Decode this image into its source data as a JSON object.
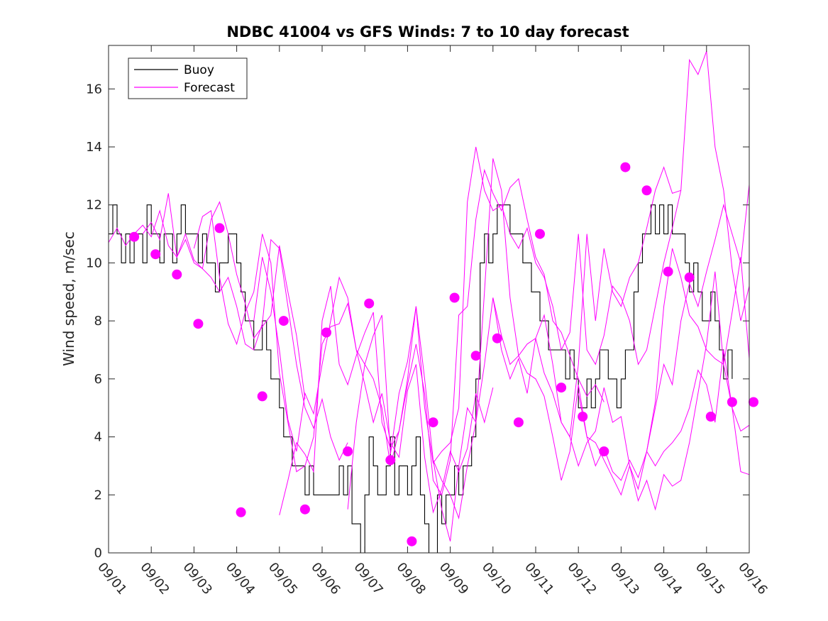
{
  "chart_data": {
    "type": "line",
    "title": "NDBC 41004 vs GFS Winds: 7 to 10 day forecast",
    "xlabel": "",
    "ylabel": "Wind speed, m/sec",
    "xlim": [
      0,
      15
    ],
    "ylim": [
      0,
      17.5
    ],
    "yticks": [
      0,
      2,
      4,
      6,
      8,
      10,
      12,
      14,
      16
    ],
    "xtick_labels": [
      "09/01",
      "09/02",
      "09/03",
      "09/04",
      "09/05",
      "09/06",
      "09/07",
      "09/08",
      "09/09",
      "09/10",
      "09/11",
      "09/12",
      "09/13",
      "09/14",
      "09/15",
      "09/16"
    ],
    "legend": {
      "position": "top-left",
      "entries": [
        {
          "name": "Buoy",
          "color": "#000000"
        },
        {
          "name": "Forecast",
          "color": "#ff00ff"
        }
      ]
    },
    "colors": {
      "buoy": "#000000",
      "forecast": "#ff00ff"
    },
    "series": [
      {
        "name": "Buoy",
        "color": "#000000",
        "x": [
          0,
          0.1,
          0.2,
          0.3,
          0.4,
          0.5,
          0.6,
          0.7,
          0.8,
          0.9,
          1.0,
          1.1,
          1.2,
          1.3,
          1.4,
          1.5,
          1.6,
          1.7,
          1.8,
          1.9,
          2.0,
          2.1,
          2.2,
          2.3,
          2.4,
          2.5,
          2.6,
          2.7,
          2.8,
          2.9,
          3.0,
          3.1,
          3.2,
          3.3,
          3.4,
          3.5,
          3.6,
          3.7,
          3.8,
          3.9,
          4.0,
          4.1,
          4.2,
          4.3,
          4.4,
          4.5,
          4.6,
          4.7,
          4.8,
          4.9,
          5.0,
          5.1,
          5.2,
          5.3,
          5.4,
          5.5,
          5.6,
          5.7,
          5.8,
          5.9,
          6.0,
          6.1,
          6.2,
          6.3,
          6.4,
          6.5,
          6.6,
          6.7,
          6.8,
          6.9,
          7.0,
          7.1,
          7.2,
          7.3,
          7.4,
          7.5,
          7.6,
          7.7,
          7.8,
          7.9,
          8.0,
          8.1,
          8.2,
          8.3,
          8.4,
          8.5,
          8.6,
          8.7,
          8.8,
          8.9,
          9.0,
          9.1,
          9.2,
          9.3,
          9.4,
          9.5,
          9.6,
          9.7,
          9.8,
          9.9,
          10.0,
          10.1,
          10.2,
          10.3,
          10.4,
          10.5,
          10.6,
          10.7,
          10.8,
          10.9,
          11.0,
          11.1,
          11.2,
          11.3,
          11.4,
          11.5,
          11.6,
          11.7,
          11.8,
          11.9,
          12.0,
          12.1,
          12.2,
          12.3,
          12.4,
          12.5,
          12.6,
          12.7,
          12.8,
          12.9,
          13.0,
          13.1,
          13.2,
          13.3,
          13.4,
          13.5,
          13.6,
          13.7,
          13.8,
          13.9,
          14.0,
          14.1,
          14.2,
          14.3,
          14.4,
          14.5,
          14.6
        ],
        "y": [
          11,
          12,
          11,
          10,
          11,
          10,
          11,
          11,
          10,
          12,
          11,
          11,
          10,
          11,
          11,
          10,
          11,
          12,
          11,
          11,
          11,
          10,
          11,
          10,
          10,
          9,
          10,
          10,
          11,
          11,
          10,
          9,
          8,
          8,
          7,
          7,
          8,
          7,
          6,
          6,
          5,
          4,
          4,
          3,
          3,
          3,
          2,
          3,
          2,
          2,
          2,
          2,
          2,
          2,
          3,
          2,
          3,
          1,
          1,
          0,
          2,
          4,
          3,
          2,
          2,
          3,
          4,
          2,
          3,
          3,
          2,
          3,
          4,
          2,
          1,
          0,
          0,
          2,
          1,
          2,
          2,
          3,
          2,
          3,
          3,
          4,
          6,
          10,
          11,
          10,
          11,
          12,
          12,
          12,
          11,
          11,
          11,
          10,
          10,
          9,
          9,
          8,
          8,
          7,
          7,
          7,
          7,
          6,
          7,
          6,
          5,
          5,
          6,
          5,
          6,
          7,
          7,
          6,
          6,
          5,
          6,
          7,
          7,
          9,
          10,
          11,
          11,
          12,
          11,
          12,
          11,
          12,
          11,
          11,
          11,
          10,
          9,
          10,
          9,
          8,
          8,
          9,
          8,
          7,
          6,
          7,
          6
        ]
      },
      {
        "name": "Forecast 1",
        "color": "#ff00ff",
        "x": [
          0,
          0.2,
          0.4,
          0.6,
          0.8,
          1.0,
          1.2,
          1.4,
          1.6,
          1.8,
          2.0,
          2.2,
          2.4,
          2.6,
          2.8,
          3.0,
          3.2,
          3.4,
          3.6,
          3.8,
          4.0,
          4.2,
          4.4,
          4.6
        ],
        "y": [
          10.7,
          11.2,
          10.6,
          11.0,
          11.3,
          10.9,
          11.8,
          10.6,
          10.2,
          11.0,
          10.1,
          9.8,
          11.5,
          12.1,
          11.0,
          9.6,
          8.6,
          7.4,
          7.8,
          8.2,
          10.6,
          9.0,
          7.5,
          5.3
        ]
      },
      {
        "name": "Forecast 2",
        "color": "#ff00ff",
        "x": [
          0.8,
          1.0,
          1.2,
          1.4,
          1.6,
          1.8,
          2.0,
          2.2,
          2.4,
          2.6,
          2.8,
          3.0,
          3.2,
          3.4,
          3.6,
          3.8,
          4.0,
          4.2,
          4.4,
          4.6,
          4.8,
          5.0,
          5.2,
          5.4,
          5.6
        ],
        "y": [
          11.0,
          11.4,
          10.8,
          12.4,
          10.2,
          10.8,
          10.0,
          9.8,
          9.5,
          9.0,
          9.5,
          8.5,
          7.2,
          7.0,
          7.9,
          10.8,
          10.5,
          8.5,
          6.5,
          5.0,
          4.3,
          5.3,
          4.0,
          3.2,
          3.8
        ]
      },
      {
        "name": "Forecast 3",
        "color": "#ff00ff",
        "x": [
          2.0,
          2.2,
          2.4,
          2.6,
          2.8,
          3.0,
          3.2,
          3.4,
          3.6,
          3.8,
          4.0,
          4.2,
          4.4,
          4.6,
          4.8,
          5.0,
          5.2,
          5.4,
          5.6,
          5.8,
          6.0,
          6.2,
          6.4,
          6.6,
          6.8,
          7.0,
          7.2,
          7.4,
          7.6,
          7.8,
          8.0,
          8.2,
          8.4,
          8.6,
          8.8,
          9.0
        ],
        "y": [
          10.5,
          11.6,
          11.8,
          9.5,
          7.9,
          7.2,
          8.3,
          9.0,
          11.0,
          10.0,
          6.2,
          4.5,
          2.8,
          3.0,
          4.0,
          7.2,
          7.8,
          7.9,
          8.6,
          7.0,
          5.8,
          4.5,
          5.5,
          3.8,
          3.3,
          5.6,
          6.5,
          3.3,
          1.4,
          2.2,
          3.5,
          2.8,
          3.6,
          5.5,
          4.5,
          5.7
        ]
      },
      {
        "name": "Forecast 4",
        "color": "#ff00ff",
        "x": [
          3.4,
          3.6,
          3.8,
          4.0,
          4.2,
          4.4,
          4.6,
          4.8,
          5.0,
          5.2,
          5.4,
          5.6,
          5.8,
          6.0,
          6.2,
          6.4,
          6.6,
          6.8,
          7.0,
          7.2,
          7.4,
          7.6,
          7.8,
          8.0,
          8.2,
          8.4,
          8.6,
          8.8,
          9.0,
          9.2,
          9.4,
          9.6,
          9.8,
          10.0,
          10.2,
          10.4,
          10.6,
          10.8,
          11.0,
          11.2,
          11.4,
          11.6
        ],
        "y": [
          8.0,
          10.2,
          9.0,
          7.0,
          4.6,
          3.5,
          5.5,
          4.8,
          6.5,
          8.0,
          9.5,
          8.8,
          7.0,
          6.5,
          6.0,
          5.0,
          3.0,
          4.2,
          5.8,
          7.2,
          5.5,
          2.5,
          2.0,
          3.2,
          8.2,
          8.5,
          11.5,
          13.2,
          12.4,
          11.8,
          12.6,
          12.9,
          11.5,
          10.2,
          9.6,
          8.0,
          7.6,
          6.8,
          6.0,
          5.4,
          5.8,
          5.2
        ]
      },
      {
        "name": "Forecast 5",
        "color": "#ff00ff",
        "x": [
          4.0,
          4.2,
          4.4,
          4.6,
          4.8,
          5.0,
          5.2,
          5.4,
          5.6,
          5.8,
          6.0,
          6.2,
          6.4,
          6.6,
          6.8,
          7.0,
          7.2,
          7.4,
          7.6,
          7.8,
          8.0,
          8.2,
          8.4,
          8.6,
          8.8,
          9.0,
          9.2,
          9.4,
          9.6,
          9.8,
          10.0,
          10.2,
          10.4,
          10.6,
          10.8,
          11.0,
          11.2,
          11.4,
          11.6,
          11.8,
          12.0,
          12.2,
          12.4,
          12.6,
          12.8,
          13.0,
          13.2,
          13.4
        ],
        "y": [
          1.3,
          2.5,
          3.8,
          3.4,
          2.8,
          8.0,
          9.2,
          6.5,
          5.8,
          6.8,
          7.6,
          8.3,
          4.5,
          3.6,
          4.2,
          6.0,
          8.5,
          5.0,
          3.1,
          3.5,
          3.8,
          5.0,
          12.1,
          14.0,
          12.5,
          11.8,
          12.0,
          11.0,
          10.5,
          11.2,
          10.0,
          9.5,
          8.5,
          7.0,
          7.6,
          11.0,
          7.0,
          6.5,
          7.5,
          9.2,
          8.8,
          8.0,
          6.5,
          7.0,
          8.5,
          10.0,
          11.2,
          12.5
        ]
      },
      {
        "name": "Forecast 6",
        "color": "#ff00ff",
        "x": [
          5.6,
          5.8,
          6.0,
          6.2,
          6.4,
          6.6,
          6.8,
          7.0,
          7.2,
          7.4,
          7.6,
          7.8,
          8.0,
          8.2,
          8.4,
          8.6,
          8.8,
          9.0,
          9.2,
          9.4,
          9.6,
          9.8,
          10.0,
          10.2,
          10.4,
          10.6,
          10.8,
          11.0,
          11.2,
          11.4,
          11.6,
          11.8,
          12.0,
          12.2,
          12.4,
          12.6,
          12.8,
          13.0,
          13.2,
          13.4,
          13.6,
          13.8,
          14.0,
          14.2,
          14.4,
          14.6,
          14.8,
          15.0
        ],
        "y": [
          1.5,
          4.5,
          6.5,
          7.5,
          8.2,
          3.4,
          5.5,
          6.6,
          8.5,
          6.0,
          3.2,
          1.5,
          0.4,
          3.0,
          5.0,
          4.5,
          9.0,
          13.6,
          12.5,
          8.8,
          6.8,
          7.2,
          7.4,
          6.2,
          5.5,
          4.5,
          4.0,
          6.5,
          11.0,
          8.0,
          10.5,
          9.0,
          8.5,
          9.5,
          10.0,
          11.2,
          12.5,
          13.3,
          12.4,
          12.5,
          17.0,
          16.5,
          17.3,
          14.0,
          12.5,
          9.8,
          8.0,
          9.2
        ]
      },
      {
        "name": "Forecast 7",
        "color": "#ff00ff",
        "x": [
          7.6,
          7.8,
          8.0,
          8.2,
          8.4,
          8.6,
          8.8,
          9.0,
          9.2,
          9.4,
          9.6,
          9.8,
          10.0,
          10.2,
          10.4,
          10.6,
          10.8,
          11.0,
          11.2,
          11.4,
          11.6,
          11.8,
          12.0,
          12.2,
          12.4,
          12.6,
          12.8,
          13.0,
          13.2,
          13.4,
          13.6,
          13.8,
          14.0,
          14.2,
          14.4,
          14.6,
          14.8,
          15.0
        ],
        "y": [
          3.2,
          2.5,
          2.0,
          1.2,
          3.0,
          4.5,
          6.5,
          8.8,
          7.0,
          6.0,
          6.7,
          5.5,
          7.4,
          8.2,
          6.5,
          4.5,
          4.0,
          3.0,
          3.8,
          4.2,
          5.7,
          4.5,
          4.7,
          3.0,
          2.2,
          3.5,
          5.0,
          6.5,
          5.8,
          8.0,
          9.3,
          8.5,
          9.7,
          10.8,
          12.0,
          11.0,
          10.0,
          12.7
        ]
      },
      {
        "name": "Forecast 8",
        "color": "#ff00ff",
        "x": [
          9.0,
          9.2,
          9.4,
          9.6,
          9.8,
          10.0,
          10.2,
          10.4,
          10.6,
          10.8,
          11.0,
          11.2,
          11.4,
          11.6,
          11.8,
          12.0,
          12.2,
          12.4,
          12.6,
          12.8,
          13.0,
          13.2,
          13.4,
          13.6,
          13.8,
          14.0,
          14.2,
          14.4,
          14.6,
          14.8,
          15.0
        ],
        "y": [
          8.8,
          7.5,
          6.5,
          6.8,
          6.2,
          6.0,
          5.4,
          4.0,
          2.5,
          3.5,
          5.8,
          4.0,
          3.8,
          3.2,
          2.6,
          2.0,
          3.0,
          1.8,
          2.5,
          1.5,
          2.7,
          2.3,
          2.5,
          3.8,
          5.5,
          7.2,
          9.7,
          6.5,
          5.0,
          4.2,
          4.4
        ]
      },
      {
        "name": "Forecast 9",
        "color": "#ff00ff",
        "x": [
          11.0,
          11.2,
          11.4,
          11.6,
          11.8,
          12.0,
          12.2,
          12.4,
          12.6,
          12.8,
          13.0,
          13.2,
          13.4,
          13.6,
          13.8,
          14.0,
          14.2,
          14.4,
          14.6,
          14.8,
          15.0
        ],
        "y": [
          5.5,
          4.0,
          3.0,
          3.6,
          2.8,
          2.5,
          3.2,
          2.6,
          3.5,
          3.0,
          3.5,
          3.8,
          4.2,
          5.0,
          6.3,
          5.8,
          4.5,
          7.0,
          5.0,
          2.8,
          2.7
        ]
      },
      {
        "name": "Forecast 10",
        "color": "#ff00ff",
        "x": [
          12.6,
          12.8,
          13.0,
          13.2,
          13.4,
          13.6,
          13.8,
          14.0,
          14.2,
          14.4,
          14.6,
          14.8,
          15.0
        ],
        "y": [
          3.5,
          5.2,
          8.5,
          10.5,
          9.5,
          8.2,
          7.8,
          7.0,
          6.7,
          6.5,
          8.3,
          10.2,
          6.7
        ]
      }
    ],
    "markers": {
      "name": "Forecast points",
      "color": "#ff00ff",
      "x": [
        0.6,
        1.1,
        1.6,
        2.1,
        2.6,
        3.1,
        3.6,
        4.1,
        4.6,
        5.1,
        5.6,
        6.1,
        6.6,
        7.1,
        7.6,
        8.1,
        8.6,
        9.1,
        9.6,
        10.1,
        10.6,
        11.1,
        11.6,
        12.1,
        12.6,
        13.1,
        13.6,
        14.1,
        14.6,
        15.1
      ],
      "y": [
        10.9,
        10.3,
        9.6,
        7.9,
        11.2,
        1.4,
        5.4,
        8.0,
        1.5,
        7.6,
        3.5,
        8.6,
        3.2,
        0.4,
        4.5,
        8.8,
        6.8,
        7.4,
        4.5,
        11.0,
        5.7,
        4.7,
        3.5,
        13.3,
        12.5,
        9.7,
        9.5,
        4.7,
        5.2,
        5.2
      ]
    }
  }
}
